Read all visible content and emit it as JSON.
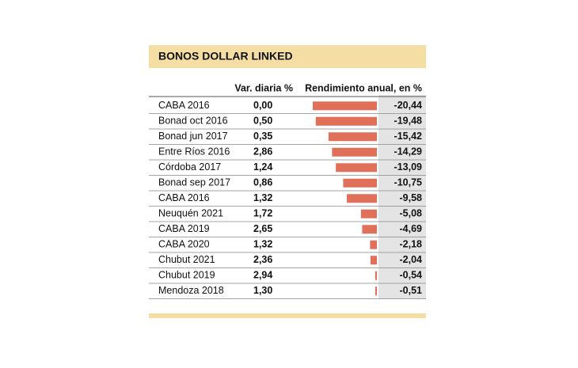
{
  "chart_data": {
    "type": "bar",
    "title": "BONOS DOLLAR LINKED",
    "column_headers": [
      "Var. diaria %",
      "Rendimiento anual, en %"
    ],
    "categories": [
      "CABA 2016",
      "Bonad oct 2016",
      "Bonad jun 2017",
      "Entre Ríos 2016",
      "Córdoba 2017",
      "Bonad sep 2017",
      "CABA 2016",
      "Neuquén 2021",
      "CABA 2019",
      "CABA 2020",
      "Chubut 2021",
      "Chubut 2019",
      "Mendoza 2018"
    ],
    "daily_change": {
      "values": [
        0,
        0.5,
        0.35,
        2.86,
        1.24,
        0.86,
        1.32,
        1.72,
        2.65,
        1.32,
        2.36,
        2.94,
        1.3
      ],
      "value_labels": [
        "0,00",
        "0,50",
        "0,35",
        "2,86",
        "1,24",
        "0,86",
        "1,32",
        "1,72",
        "2,65",
        "1,32",
        "2,36",
        "2,94",
        "1,30"
      ]
    },
    "values": [
      -20.44,
      -19.48,
      -15.42,
      -14.29,
      -13.09,
      -10.75,
      -9.58,
      -5.08,
      -4.69,
      -2.18,
      -2.04,
      -0.54,
      -0.51
    ],
    "value_labels": [
      "-20,44",
      "-19,48",
      "-15,42",
      "-14,29",
      "-13,09",
      "-10,75",
      "-9,58",
      "-5,08",
      "-4,69",
      "-2,18",
      "-2,04",
      "-0,54",
      "-0,51"
    ],
    "color": "#e0705a"
  }
}
